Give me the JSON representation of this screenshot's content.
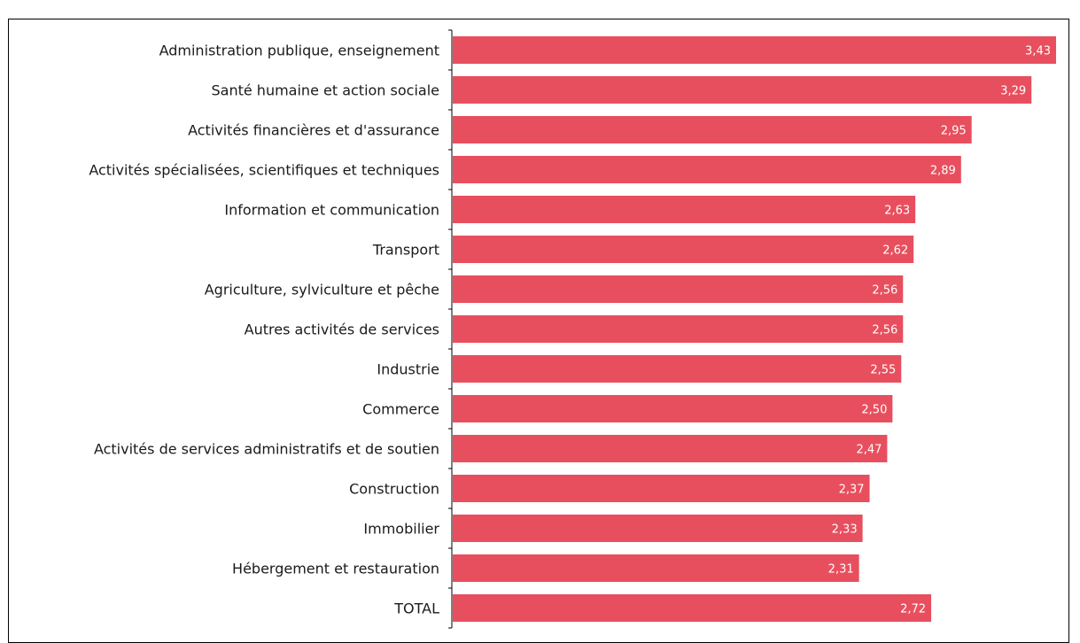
{
  "chart_data": {
    "type": "bar",
    "orientation": "horizontal",
    "categories": [
      "Administration publique, enseignement",
      "Santé humaine et action sociale",
      "Activités financières et d'assurance",
      "Activités spécialisées, scientifiques et techniques",
      "Information et communication",
      "Transport",
      "Agriculture, sylviculture et pêche",
      "Autres activités de services",
      "Industrie",
      "Commerce",
      "Activités de services administratifs et de soutien",
      "Construction",
      "Immobilier",
      "Hébergement et restauration",
      "TOTAL"
    ],
    "values": [
      3.43,
      3.29,
      2.95,
      2.89,
      2.63,
      2.62,
      2.56,
      2.56,
      2.55,
      2.5,
      2.47,
      2.37,
      2.33,
      2.31,
      2.72
    ],
    "value_labels": [
      "3,43",
      "3,29",
      "2,95",
      "2,89",
      "2,63",
      "2,62",
      "2,56",
      "2,56",
      "2,55",
      "2,50",
      "2,47",
      "2,37",
      "2,33",
      "2,31",
      "2,72"
    ],
    "xlim": [
      0,
      3.5
    ],
    "bar_color": "#e84f5e",
    "grid": false,
    "legend": "none"
  }
}
